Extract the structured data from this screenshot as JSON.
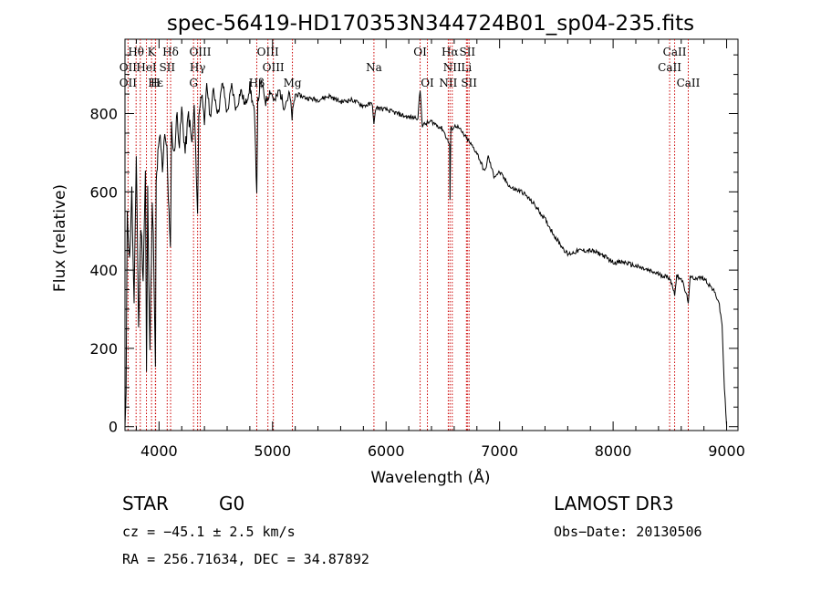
{
  "chart_data": {
    "type": "line",
    "title": "spec-56419-HD170353N344724B01_sp04-235.fits",
    "xlabel": "Wavelength (Å)",
    "ylabel": "Flux (relative)",
    "xlim": [
      3700,
      9100
    ],
    "ylim": [
      -10,
      990
    ],
    "x_ticks": [
      4000,
      5000,
      6000,
      7000,
      8000,
      9000
    ],
    "y_ticks": [
      0,
      200,
      400,
      600,
      800
    ],
    "spectrum": [
      [
        3700,
        0
      ],
      [
        3710,
        80
      ],
      [
        3720,
        560
      ],
      [
        3740,
        420
      ],
      [
        3760,
        600
      ],
      [
        3780,
        300
      ],
      [
        3800,
        700
      ],
      [
        3820,
        250
      ],
      [
        3840,
        520
      ],
      [
        3860,
        380
      ],
      [
        3880,
        650
      ],
      [
        3890,
        130
      ],
      [
        3900,
        600
      ],
      [
        3920,
        200
      ],
      [
        3940,
        560
      ],
      [
        3950,
        480
      ],
      [
        3968,
        140
      ],
      [
        3975,
        620
      ],
      [
        3990,
        690
      ],
      [
        4010,
        740
      ],
      [
        4030,
        660
      ],
      [
        4050,
        760
      ],
      [
        4070,
        700
      ],
      [
        4100,
        440
      ],
      [
        4110,
        770
      ],
      [
        4130,
        690
      ],
      [
        4160,
        800
      ],
      [
        4180,
        720
      ],
      [
        4200,
        810
      ],
      [
        4230,
        700
      ],
      [
        4260,
        800
      ],
      [
        4290,
        720
      ],
      [
        4310,
        820
      ],
      [
        4340,
        540
      ],
      [
        4350,
        800
      ],
      [
        4380,
        860
      ],
      [
        4400,
        760
      ],
      [
        4420,
        880
      ],
      [
        4450,
        790
      ],
      [
        4480,
        860
      ],
      [
        4520,
        800
      ],
      [
        4560,
        880
      ],
      [
        4600,
        800
      ],
      [
        4640,
        870
      ],
      [
        4680,
        810
      ],
      [
        4720,
        860
      ],
      [
        4760,
        820
      ],
      [
        4800,
        870
      ],
      [
        4840,
        800
      ],
      [
        4861,
        600
      ],
      [
        4870,
        830
      ],
      [
        4900,
        880
      ],
      [
        4940,
        830
      ],
      [
        4980,
        860
      ],
      [
        5020,
        830
      ],
      [
        5060,
        860
      ],
      [
        5100,
        820
      ],
      [
        5150,
        850
      ],
      [
        5172,
        790
      ],
      [
        5200,
        850
      ],
      [
        5300,
        840
      ],
      [
        5400,
        835
      ],
      [
        5500,
        845
      ],
      [
        5600,
        830
      ],
      [
        5700,
        835
      ],
      [
        5800,
        820
      ],
      [
        5880,
        825
      ],
      [
        5893,
        770
      ],
      [
        5910,
        815
      ],
      [
        6000,
        810
      ],
      [
        6100,
        800
      ],
      [
        6200,
        790
      ],
      [
        6280,
        790
      ],
      [
        6300,
        860
      ],
      [
        6320,
        770
      ],
      [
        6400,
        780
      ],
      [
        6500,
        760
      ],
      [
        6560,
        720
      ],
      [
        6563,
        580
      ],
      [
        6570,
        760
      ],
      [
        6620,
        770
      ],
      [
        6700,
        740
      ],
      [
        6800,
        700
      ],
      [
        6870,
        650
      ],
      [
        6900,
        690
      ],
      [
        6950,
        640
      ],
      [
        7000,
        650
      ],
      [
        7100,
        610
      ],
      [
        7200,
        600
      ],
      [
        7300,
        570
      ],
      [
        7400,
        530
      ],
      [
        7500,
        480
      ],
      [
        7600,
        440
      ],
      [
        7700,
        450
      ],
      [
        7800,
        450
      ],
      [
        7900,
        440
      ],
      [
        8000,
        420
      ],
      [
        8100,
        420
      ],
      [
        8200,
        410
      ],
      [
        8300,
        400
      ],
      [
        8400,
        390
      ],
      [
        8500,
        380
      ],
      [
        8542,
        340
      ],
      [
        8560,
        385
      ],
      [
        8600,
        380
      ],
      [
        8662,
        320
      ],
      [
        8680,
        380
      ],
      [
        8800,
        380
      ],
      [
        8880,
        350
      ],
      [
        8930,
        320
      ],
      [
        8960,
        260
      ],
      [
        8980,
        100
      ],
      [
        9000,
        0
      ]
    ],
    "annotations": [
      {
        "label": "Hθ",
        "x": 3798,
        "tier": 1
      },
      {
        "label": "K",
        "x": 3934,
        "tier": 1
      },
      {
        "label": "Hδ",
        "x": 4102,
        "tier": 1
      },
      {
        "label": "OIII",
        "x": 4363,
        "tier": 1
      },
      {
        "label": "OIII",
        "x": 4959,
        "tier": 1
      },
      {
        "label": "OI",
        "x": 6300,
        "tier": 1
      },
      {
        "label": "Hα",
        "x": 6563,
        "tier": 1
      },
      {
        "label": "SII",
        "x": 6716,
        "tier": 1
      },
      {
        "label": "CaII",
        "x": 8542,
        "tier": 1
      },
      {
        "label": "OII",
        "x": 3727,
        "tier": 2
      },
      {
        "label": "HeI",
        "x": 3889,
        "tier": 2
      },
      {
        "label": "SII",
        "x": 4072,
        "tier": 2
      },
      {
        "label": "Hγ",
        "x": 4340,
        "tier": 2
      },
      {
        "label": "OIII",
        "x": 5007,
        "tier": 2
      },
      {
        "label": "Na",
        "x": 5893,
        "tier": 2
      },
      {
        "label": "NII",
        "x": 6583,
        "tier": 2
      },
      {
        "label": "Li",
        "x": 6708,
        "tier": 2
      },
      {
        "label": "CaII",
        "x": 8498,
        "tier": 2
      },
      {
        "label": "OII",
        "x": 3727,
        "tier": 3
      },
      {
        "label": "Hε",
        "x": 3970,
        "tier": 3
      },
      {
        "label": "H",
        "x": 3968,
        "tier": 3
      },
      {
        "label": "G",
        "x": 4304,
        "tier": 3
      },
      {
        "label": "Hβ",
        "x": 4861,
        "tier": 3
      },
      {
        "label": "Mg",
        "x": 5175,
        "tier": 3
      },
      {
        "label": "OI",
        "x": 6364,
        "tier": 3
      },
      {
        "label": "NII",
        "x": 6548,
        "tier": 3
      },
      {
        "label": "SII",
        "x": 6731,
        "tier": 3
      },
      {
        "label": "CaII",
        "x": 8662,
        "tier": 3
      }
    ],
    "line_markers": [
      3727,
      3798,
      3835,
      3889,
      3934,
      3968,
      3970,
      4072,
      4102,
      4304,
      4340,
      4363,
      4861,
      4959,
      5007,
      5175,
      5893,
      6300,
      6364,
      6548,
      6563,
      6583,
      6708,
      6716,
      6731,
      8498,
      8542,
      8662
    ],
    "line_marker_color": "#cc0000",
    "spectrum_color": "#000000"
  },
  "info": {
    "object_class": "STAR",
    "subclass": "G0",
    "survey": "LAMOST DR3",
    "cz": "cz = −45.1 ± 2.5 km/s",
    "obs_date": "Obs−Date: 20130506",
    "coords": "RA = 256.71634, DEC =  34.87892"
  }
}
